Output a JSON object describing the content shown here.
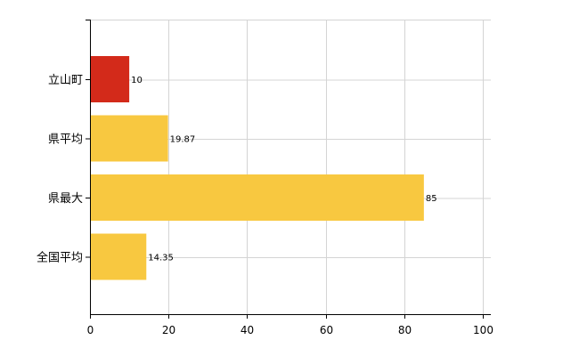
{
  "chart_data": {
    "type": "bar",
    "orientation": "horizontal",
    "categories": [
      "立山町",
      "県平均",
      "県最大",
      "全国平均"
    ],
    "values": [
      10,
      19.87,
      85,
      14.35
    ],
    "value_labels": [
      "10",
      "19.87",
      "85",
      "14.35"
    ],
    "bar_colors": [
      "#d32a1a",
      "#f8c840",
      "#f8c840",
      "#f8c840"
    ],
    "xlim": [
      0,
      100
    ],
    "x_ticks": [
      0,
      20,
      40,
      60,
      80,
      100
    ],
    "x_tick_labels": [
      "0",
      "20",
      "40",
      "60",
      "80",
      "100"
    ],
    "grid": true,
    "legend": "none",
    "title": "",
    "xlabel": "",
    "ylabel": ""
  },
  "colors": {
    "highlight": "#d32a1a",
    "default_bar": "#f8c840",
    "grid": "#d4d4d4",
    "axis": "#000000"
  }
}
